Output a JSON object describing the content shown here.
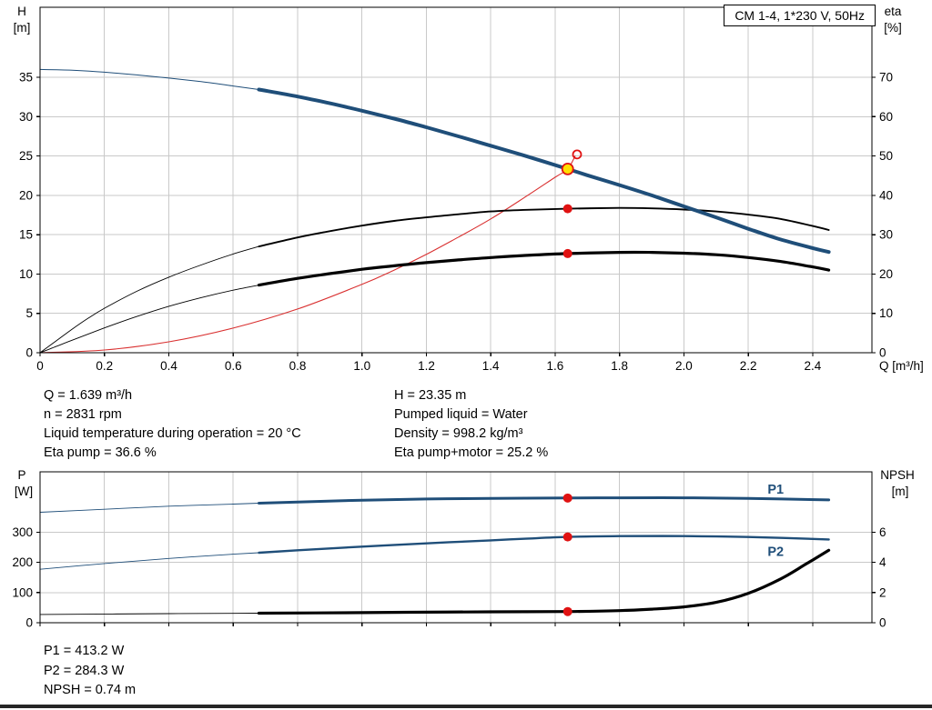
{
  "info_top": {
    "left": [
      "Q = 1.639 m³/h",
      "n = 2831 rpm",
      "Liquid temperature during operation = 20 °C",
      "Eta pump = 36.6 %"
    ],
    "right": [
      "H = 23.35 m",
      "Pumped liquid = Water",
      "Density = 998.2 kg/m³",
      "Eta pump+motor = 25.2 %"
    ]
  },
  "info_bottom": [
    "P1 = 413.2 W",
    "P2 = 284.3 W",
    "NPSH = 0.74 m"
  ],
  "colors": {
    "pump_curve_blue": "#1f4e79",
    "system_curve_red": "#d93030",
    "marker_red": "#e01212",
    "duty_point_yellow": "#ffdf00",
    "curve_black": "#000000",
    "grid_gray": "#c9c9c9"
  },
  "chart_data": [
    {
      "type": "line",
      "name": "head-eta-chart",
      "title": "CM 1-4, 1*230 V, 50Hz",
      "x_axis": {
        "label": "Q [m³/h]",
        "min": 0,
        "max": 2.584,
        "ticks": [
          0,
          0.2,
          0.4,
          0.6,
          0.8,
          1.0,
          1.2,
          1.4,
          1.6,
          1.8,
          2.0,
          2.2,
          2.4
        ],
        "tick_labels": [
          "0",
          "0.2",
          "0.4",
          "0.6",
          "0.8",
          "1.0",
          "1.2",
          "1.4",
          "1.6",
          "1.8",
          "2.0",
          "2.2",
          "2.4"
        ]
      },
      "y_left": {
        "label": "H",
        "unit": "[m]",
        "min": 0,
        "max": 43.9,
        "ticks": [
          0,
          5,
          10,
          15,
          20,
          25,
          30,
          35
        ]
      },
      "y_right": {
        "label": "eta",
        "unit": "[%]",
        "min": 0,
        "max": 87.8,
        "ticks": [
          0,
          10,
          20,
          30,
          40,
          50,
          60,
          70
        ]
      },
      "grid": true,
      "series": [
        {
          "name": "system-curve",
          "axis": "left",
          "color": "#d93030",
          "width": 1.1,
          "points": [
            [
              0,
              0
            ],
            [
              0.2,
              0.35
            ],
            [
              0.4,
              1.39
            ],
            [
              0.6,
              3.13
            ],
            [
              0.8,
              5.56
            ],
            [
              1.0,
              8.69
            ],
            [
              1.1,
              10.5
            ],
            [
              1.2,
              12.5
            ],
            [
              1.3,
              14.7
            ],
            [
              1.4,
              17.0
            ],
            [
              1.5,
              19.6
            ],
            [
              1.6,
              22.3
            ],
            [
              1.639,
              23.35
            ],
            [
              1.662,
              25.0
            ]
          ]
        },
        {
          "name": "eta-pump-curve",
          "axis": "right",
          "color": "#000000",
          "width": 1.9,
          "width_thin": 0.9,
          "thin_until": 0.68,
          "points": [
            [
              0,
              0
            ],
            [
              0.05,
              3.0
            ],
            [
              0.1,
              6.0
            ],
            [
              0.15,
              8.8
            ],
            [
              0.2,
              11.3
            ],
            [
              0.3,
              15.6
            ],
            [
              0.4,
              19.2
            ],
            [
              0.5,
              22.3
            ],
            [
              0.6,
              25.1
            ],
            [
              0.68,
              27.0
            ],
            [
              0.8,
              29.3
            ],
            [
              0.9,
              30.9
            ],
            [
              1.0,
              32.3
            ],
            [
              1.1,
              33.5
            ],
            [
              1.2,
              34.4
            ],
            [
              1.3,
              35.2
            ],
            [
              1.4,
              35.9
            ],
            [
              1.5,
              36.3
            ],
            [
              1.639,
              36.6
            ],
            [
              1.8,
              36.8
            ],
            [
              1.9,
              36.7
            ],
            [
              2.0,
              36.4
            ],
            [
              2.1,
              35.9
            ],
            [
              2.2,
              35.1
            ],
            [
              2.3,
              34.0
            ],
            [
              2.4,
              32.2
            ],
            [
              2.45,
              31.2
            ]
          ]
        },
        {
          "name": "eta-pump-motor-curve",
          "axis": "right",
          "color": "#000000",
          "width": 3.2,
          "width_thin": 0.9,
          "thin_until": 0.68,
          "points": [
            [
              0,
              0
            ],
            [
              0.05,
              1.6
            ],
            [
              0.1,
              3.2
            ],
            [
              0.2,
              6.3
            ],
            [
              0.3,
              9.2
            ],
            [
              0.4,
              11.8
            ],
            [
              0.5,
              14.0
            ],
            [
              0.6,
              15.9
            ],
            [
              0.68,
              17.2
            ],
            [
              0.8,
              18.9
            ],
            [
              0.9,
              20.1
            ],
            [
              1.0,
              21.2
            ],
            [
              1.1,
              22.1
            ],
            [
              1.2,
              22.9
            ],
            [
              1.3,
              23.6
            ],
            [
              1.4,
              24.2
            ],
            [
              1.5,
              24.7
            ],
            [
              1.639,
              25.2
            ],
            [
              1.8,
              25.5
            ],
            [
              1.9,
              25.5
            ],
            [
              2.0,
              25.3
            ],
            [
              2.1,
              24.9
            ],
            [
              2.2,
              24.2
            ],
            [
              2.3,
              23.2
            ],
            [
              2.4,
              21.8
            ],
            [
              2.45,
              21.0
            ]
          ]
        },
        {
          "name": "pump-head-curve",
          "axis": "left",
          "color": "#1f4e79",
          "width": 4,
          "width_thin": 1,
          "thin_until": 0.68,
          "points": [
            [
              0,
              36.0
            ],
            [
              0.1,
              35.9
            ],
            [
              0.2,
              35.65
            ],
            [
              0.3,
              35.3
            ],
            [
              0.4,
              34.9
            ],
            [
              0.5,
              34.45
            ],
            [
              0.6,
              33.9
            ],
            [
              0.68,
              33.45
            ],
            [
              0.8,
              32.55
            ],
            [
              0.9,
              31.7
            ],
            [
              1.0,
              30.75
            ],
            [
              1.1,
              29.75
            ],
            [
              1.2,
              28.65
            ],
            [
              1.3,
              27.5
            ],
            [
              1.4,
              26.3
            ],
            [
              1.5,
              25.1
            ],
            [
              1.639,
              23.35
            ],
            [
              1.7,
              22.55
            ],
            [
              1.8,
              21.3
            ],
            [
              1.9,
              20.0
            ],
            [
              2.0,
              18.6
            ],
            [
              2.1,
              17.2
            ],
            [
              2.2,
              15.75
            ],
            [
              2.3,
              14.4
            ],
            [
              2.4,
              13.3
            ],
            [
              2.45,
              12.8
            ]
          ]
        }
      ],
      "markers": [
        {
          "name": "eta-pump-duty-point",
          "axis": "right",
          "x": 1.639,
          "y": 36.6,
          "r": 5,
          "fill": "#e01212",
          "stroke": "none"
        },
        {
          "name": "eta-pump-motor-duty-point",
          "axis": "right",
          "x": 1.639,
          "y": 25.2,
          "r": 5,
          "fill": "#e01212",
          "stroke": "none"
        },
        {
          "name": "requested-duty-point",
          "axis": "left",
          "x": 1.668,
          "y": 25.2,
          "r": 4.5,
          "fill": "none",
          "stroke": "#e01212"
        },
        {
          "name": "duty-point",
          "axis": "left",
          "x": 1.639,
          "y": 23.35,
          "r": 6,
          "fill": "#ffdf00",
          "stroke": "#e01212"
        }
      ]
    },
    {
      "type": "line",
      "name": "power-npsh-chart",
      "title": "",
      "x_axis": {
        "label": "",
        "min": 0,
        "max": 2.584,
        "ticks": [
          0,
          0.2,
          0.4,
          0.6,
          0.8,
          1.0,
          1.2,
          1.4,
          1.6,
          1.8,
          2.0,
          2.2,
          2.4
        ],
        "tick_labels": []
      },
      "y_left": {
        "label": "P",
        "unit": "[W]",
        "min": 0,
        "max": 500,
        "ticks": [
          0,
          100,
          200,
          300
        ]
      },
      "y_right": {
        "label": "NPSH",
        "unit": "[m]",
        "min": 0,
        "max": 10,
        "ticks": [
          0,
          2,
          4,
          6
        ]
      },
      "grid": true,
      "series": [
        {
          "name": "p1-curve",
          "axis": "left",
          "color": "#1f4e79",
          "width": 3,
          "width_thin": 0.9,
          "thin_until": 0.68,
          "points": [
            [
              0,
              366
            ],
            [
              0.2,
              376
            ],
            [
              0.4,
              386
            ],
            [
              0.6,
              393
            ],
            [
              0.68,
              396
            ],
            [
              0.8,
              400
            ],
            [
              1.0,
              406
            ],
            [
              1.2,
              410
            ],
            [
              1.4,
              412
            ],
            [
              1.639,
              413.2
            ],
            [
              1.8,
              414
            ],
            [
              2.0,
              414
            ],
            [
              2.2,
              412
            ],
            [
              2.45,
              407
            ]
          ]
        },
        {
          "name": "p2-curve",
          "axis": "left",
          "color": "#1f4e79",
          "width": 2.4,
          "width_thin": 0.9,
          "thin_until": 0.68,
          "points": [
            [
              0,
              177
            ],
            [
              0.2,
              196
            ],
            [
              0.4,
              213
            ],
            [
              0.6,
              227
            ],
            [
              0.68,
              232
            ],
            [
              0.8,
              240
            ],
            [
              1.0,
              252
            ],
            [
              1.2,
              263
            ],
            [
              1.4,
              273
            ],
            [
              1.5,
              278
            ],
            [
              1.639,
              284.3
            ],
            [
              1.8,
              287
            ],
            [
              2.0,
              287
            ],
            [
              2.2,
              284
            ],
            [
              2.45,
              276
            ]
          ]
        },
        {
          "name": "npsh-curve",
          "axis": "right",
          "color": "#000000",
          "width": 3.2,
          "width_thin": 0.9,
          "thin_until": 0.68,
          "points": [
            [
              0,
              0.55
            ],
            [
              0.4,
              0.6
            ],
            [
              0.68,
              0.63
            ],
            [
              1.0,
              0.67
            ],
            [
              1.2,
              0.7
            ],
            [
              1.4,
              0.72
            ],
            [
              1.639,
              0.74
            ],
            [
              1.8,
              0.8
            ],
            [
              1.9,
              0.9
            ],
            [
              2.0,
              1.05
            ],
            [
              2.1,
              1.35
            ],
            [
              2.2,
              1.95
            ],
            [
              2.3,
              2.9
            ],
            [
              2.38,
              3.9
            ],
            [
              2.45,
              4.8
            ]
          ]
        }
      ],
      "markers": [
        {
          "name": "p1-duty-point",
          "axis": "left",
          "x": 1.639,
          "y": 413.2,
          "r": 5,
          "fill": "#e01212",
          "stroke": "none"
        },
        {
          "name": "p2-duty-point",
          "axis": "left",
          "x": 1.639,
          "y": 284.3,
          "r": 5,
          "fill": "#e01212",
          "stroke": "none"
        },
        {
          "name": "npsh-duty-point",
          "axis": "right",
          "x": 1.639,
          "y": 0.74,
          "r": 5,
          "fill": "#e01212",
          "stroke": "none"
        }
      ],
      "annotations": [
        {
          "name": "p1-label",
          "text": "P1",
          "axis": "left",
          "x": 2.26,
          "y": 428,
          "color": "#1f4e79"
        },
        {
          "name": "p2-label",
          "text": "P2",
          "axis": "left",
          "x": 2.26,
          "y": 222,
          "color": "#1f4e79"
        }
      ]
    }
  ]
}
